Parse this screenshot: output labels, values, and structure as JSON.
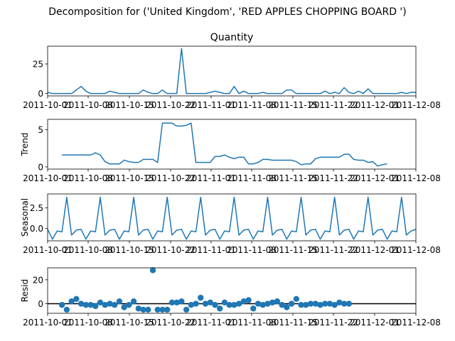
{
  "suptitle": "Decomposition for ('United Kingdom', 'RED APPLES CHOPPING BOARD   ')",
  "colors": {
    "line": "#1f77b4",
    "axis": "#000000",
    "zero_line": "#000000"
  },
  "chart_data": [
    {
      "type": "line",
      "title": "Quantity",
      "ylabel": "",
      "x_ticklabels": [
        "2011-10-01",
        "2011-10-08",
        "2011-10-15",
        "2011-10-22",
        "2011-11-01",
        "2011-11-08",
        "2011-11-15",
        "2011-11-22",
        "2011-12-01",
        "2011-12-08"
      ],
      "yticks": [
        0,
        25
      ],
      "ylim": [
        -2,
        40
      ],
      "values": [
        1,
        0,
        0,
        0,
        0,
        0,
        3,
        6,
        2,
        0,
        0,
        0,
        0,
        2,
        1,
        0,
        0,
        0,
        0,
        0,
        3,
        1,
        0,
        0,
        3,
        0,
        0,
        0,
        38,
        0,
        0,
        0,
        0,
        0,
        1,
        2,
        1,
        0,
        0,
        6,
        0,
        2,
        0,
        0,
        0,
        1,
        0,
        0,
        0,
        0,
        3,
        3,
        0,
        0,
        0,
        0,
        0,
        0,
        2,
        0,
        1,
        0,
        5,
        1,
        0,
        2,
        0,
        4,
        0,
        0,
        0,
        0,
        0,
        0,
        1,
        0,
        1,
        1
      ]
    },
    {
      "type": "line",
      "title": "",
      "ylabel": "Trend",
      "x_ticklabels": [
        "2011-10-01",
        "2011-10-08",
        "2011-10-15",
        "2011-10-22",
        "2011-11-01",
        "2011-11-08",
        "2011-11-15",
        "2011-11-22",
        "2011-12-01",
        "2011-12-08"
      ],
      "yticks": [
        0,
        5
      ],
      "ylim": [
        -0.3,
        6.4
      ],
      "values": [
        null,
        null,
        null,
        1.6,
        1.6,
        1.6,
        1.6,
        1.6,
        1.6,
        1.6,
        1.9,
        1.6,
        0.7,
        0.4,
        0.4,
        0.4,
        0.9,
        0.7,
        0.6,
        0.6,
        1.0,
        1.0,
        1.0,
        0.6,
        5.9,
        5.9,
        5.9,
        5.5,
        5.5,
        5.6,
        5.9,
        0.6,
        0.6,
        0.6,
        0.6,
        1.4,
        1.4,
        1.6,
        1.3,
        1.1,
        1.3,
        1.3,
        0.4,
        0.4,
        0.6,
        1.0,
        1.0,
        0.9,
        0.9,
        0.9,
        0.9,
        0.9,
        0.7,
        0.3,
        0.4,
        0.4,
        1.1,
        1.3,
        1.3,
        1.3,
        1.3,
        1.3,
        1.7,
        1.7,
        1.0,
        0.9,
        0.9,
        0.6,
        0.7,
        0.1,
        0.3,
        0.4,
        null,
        null,
        null,
        null,
        null,
        null
      ]
    },
    {
      "type": "line",
      "title": "",
      "ylabel": "Seasonal",
      "x_ticklabels": [
        "2011-10-01",
        "2011-10-08",
        "2011-10-15",
        "2011-10-22",
        "2011-11-01",
        "2011-11-08",
        "2011-11-15",
        "2011-11-22",
        "2011-12-01",
        "2011-12-08"
      ],
      "yticks": [
        0.0,
        2.5
      ],
      "ylim": [
        -1.5,
        4.2
      ],
      "values": [
        -0.1,
        -1.3,
        -0.3,
        -0.4,
        3.8,
        -0.8,
        -0.2,
        -0.1,
        -1.3,
        -0.3,
        -0.4,
        3.8,
        -0.8,
        -0.2,
        -0.1,
        -1.3,
        -0.3,
        -0.4,
        3.8,
        -0.8,
        -0.2,
        -0.1,
        -1.3,
        -0.3,
        -0.4,
        3.8,
        -0.8,
        -0.2,
        -0.1,
        -1.3,
        -0.3,
        -0.4,
        3.8,
        -0.8,
        -0.2,
        -0.1,
        -1.3,
        -0.3,
        -0.4,
        3.8,
        -0.8,
        -0.2,
        -0.1,
        -1.3,
        -0.3,
        -0.4,
        3.8,
        -0.8,
        -0.2,
        -0.1,
        -1.3,
        -0.3,
        -0.4,
        3.8,
        -0.8,
        -0.2,
        -0.1,
        -1.3,
        -0.3,
        -0.4,
        3.8,
        -0.8,
        -0.2,
        -0.1,
        -1.3,
        -0.3,
        -0.4,
        3.8,
        -0.8,
        -0.2,
        -0.1,
        -1.3,
        -0.3,
        -0.4,
        3.8,
        -0.8,
        -0.3,
        -0.1
      ]
    },
    {
      "type": "scatter",
      "title": "",
      "ylabel": "Resid",
      "x_ticklabels": [
        "2011-10-01",
        "2011-10-08",
        "2011-10-15",
        "2011-10-22",
        "2011-11-01",
        "2011-11-08",
        "2011-11-15",
        "2011-11-22",
        "2011-12-01",
        "2011-12-08"
      ],
      "yticks": [
        0,
        20
      ],
      "ylim": [
        -8,
        30
      ],
      "zero_line": 0,
      "values": [
        null,
        null,
        null,
        -1,
        -5,
        2,
        4,
        0,
        -1,
        -1,
        -2,
        1,
        -1,
        0,
        -1,
        2,
        -3,
        -1,
        2,
        -4,
        -5,
        -5,
        28,
        -5,
        -5,
        -5,
        1,
        1,
        2,
        -5,
        -1,
        0,
        5,
        0,
        1,
        -1,
        -4,
        1,
        -1,
        -1,
        0,
        2,
        3,
        -4,
        0,
        -1,
        0,
        1,
        2,
        -1,
        -3,
        0,
        4,
        -1,
        -1,
        0,
        0,
        -1,
        0,
        0,
        -1,
        1,
        0,
        0,
        null,
        null,
        null,
        null,
        null,
        null,
        null,
        null,
        null,
        null,
        null,
        null,
        null,
        null
      ]
    }
  ]
}
